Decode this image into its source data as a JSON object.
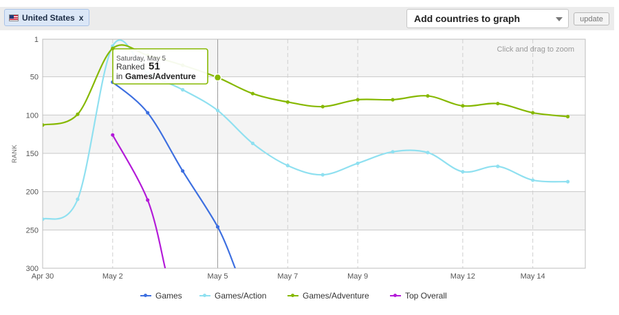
{
  "filter": {
    "country_label": "United States",
    "remove_label": "x",
    "add_placeholder": "Add countries to graph",
    "update_label": "update"
  },
  "zoom_hint": "Click and drag to zoom",
  "tooltip": {
    "date": "Saturday, May 5",
    "ranked_prefix": "Ranked",
    "rank": "51",
    "in_prefix": "in",
    "category": "Games/Adventure"
  },
  "chart_data": {
    "type": "line",
    "title": "",
    "xlabel": "",
    "ylabel": "RANK",
    "y_reversed": true,
    "ylim": [
      1,
      300
    ],
    "y_ticks": [
      "1",
      "50",
      "100",
      "150",
      "200",
      "250",
      "300"
    ],
    "y_tick_values": [
      1,
      50,
      100,
      150,
      200,
      250,
      300
    ],
    "x_domain": [
      "2012-04-30",
      "2012-05-15T12:00"
    ],
    "x_ticks": [
      {
        "label": "Apr 30",
        "date": "2012-04-30"
      },
      {
        "label": "May 2",
        "date": "2012-05-02"
      },
      {
        "label": "May 5",
        "date": "2012-05-05"
      },
      {
        "label": "May 7",
        "date": "2012-05-07"
      },
      {
        "label": "May 9",
        "date": "2012-05-09"
      },
      {
        "label": "May 12",
        "date": "2012-05-12"
      },
      {
        "label": "May 14",
        "date": "2012-05-14"
      }
    ],
    "grid": true,
    "legend_position": "bottom",
    "series": [
      {
        "name": "Games",
        "color": "#3d6fe0",
        "x": [
          "2012-05-02",
          "2012-05-03",
          "2012-05-04",
          "2012-05-05",
          "2012-05-05T12:00"
        ],
        "y": [
          57,
          97,
          173,
          246,
          300
        ]
      },
      {
        "name": "Games/Action",
        "color": "#8fe0f0",
        "x": [
          "2012-04-30",
          "2012-05-01",
          "2012-05-02",
          "2012-05-03",
          "2012-05-04",
          "2012-05-05",
          "2012-05-06",
          "2012-05-07",
          "2012-05-08",
          "2012-05-09",
          "2012-05-10",
          "2012-05-11",
          "2012-05-12",
          "2012-05-13",
          "2012-05-14",
          "2012-05-15"
        ],
        "y": [
          236,
          210,
          10,
          45,
          67,
          94,
          137,
          166,
          178,
          163,
          148,
          149,
          174,
          167,
          185,
          187
        ]
      },
      {
        "name": "Games/Adventure",
        "color": "#86b800",
        "x": [
          "2012-04-30",
          "2012-05-01",
          "2012-05-02",
          "2012-05-03",
          "2012-05-04",
          "2012-05-05",
          "2012-05-06",
          "2012-05-07",
          "2012-05-08",
          "2012-05-09",
          "2012-05-10",
          "2012-05-11",
          "2012-05-12",
          "2012-05-13",
          "2012-05-14",
          "2012-05-15"
        ],
        "y": [
          113,
          99,
          13,
          22,
          35,
          51,
          72,
          83,
          89,
          80,
          80,
          75,
          88,
          85,
          97,
          102
        ]
      },
      {
        "name": "Top Overall",
        "color": "#b31ad8",
        "x": [
          "2012-05-02",
          "2012-05-03",
          "2012-05-03T12:00"
        ],
        "y": [
          126,
          211,
          300
        ]
      }
    ],
    "highlight": {
      "series": "Games/Adventure",
      "x": "2012-05-05",
      "y": 51
    }
  }
}
